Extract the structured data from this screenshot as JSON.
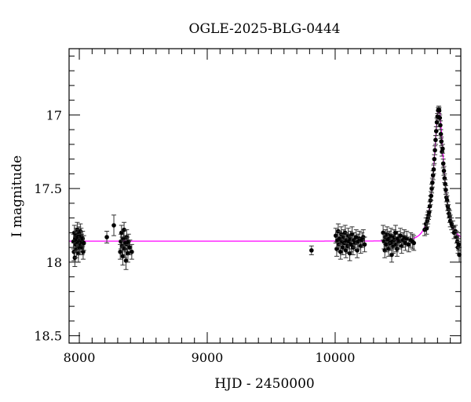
{
  "chart_data": {
    "type": "scatter",
    "title": "OGLE-2025-BLG-0444",
    "xlabel": "HJD - 2450000",
    "ylabel": "I magnitude",
    "xlim": [
      7920,
      10982
    ],
    "ylim": [
      18.55,
      16.55
    ],
    "y_inverted": true,
    "x_ticks": [
      8000,
      9000,
      10000
    ],
    "x_tick_labels": [
      "8000",
      "9000",
      "10000"
    ],
    "x_minor_step": 100,
    "y_ticks": [
      17,
      17.5,
      18,
      18.5
    ],
    "y_tick_labels": [
      "17",
      "17.5",
      "18",
      "18.5"
    ],
    "y_minor_step": 0.1,
    "grid": false,
    "colors": {
      "points": "#000000",
      "model": "#ff00ff"
    },
    "model": {
      "type": "point-lens",
      "t0": 10810,
      "tE": 67,
      "u0": 0.47,
      "baseline_mag": 17.857
    },
    "points": [
      [
        7955,
        17.86,
        0.05
      ],
      [
        7958,
        17.93,
        0.06
      ],
      [
        7962,
        17.8,
        0.05
      ],
      [
        7965,
        17.97,
        0.06
      ],
      [
        7968,
        17.84,
        0.05
      ],
      [
        7972,
        17.88,
        0.05
      ],
      [
        7975,
        17.82,
        0.05
      ],
      [
        7978,
        17.91,
        0.06
      ],
      [
        7981,
        17.85,
        0.05
      ],
      [
        7984,
        17.78,
        0.05
      ],
      [
        7987,
        17.87,
        0.05
      ],
      [
        7990,
        17.83,
        0.05
      ],
      [
        7993,
        17.94,
        0.06
      ],
      [
        7996,
        17.81,
        0.05
      ],
      [
        7999,
        17.86,
        0.05
      ],
      [
        8002,
        17.9,
        0.05
      ],
      [
        8005,
        17.84,
        0.05
      ],
      [
        8008,
        17.79,
        0.05
      ],
      [
        8011,
        17.88,
        0.05
      ],
      [
        8014,
        17.82,
        0.05
      ],
      [
        8018,
        17.86,
        0.05
      ],
      [
        8022,
        17.9,
        0.05
      ],
      [
        8026,
        17.84,
        0.05
      ],
      [
        8030,
        17.93,
        0.05
      ],
      [
        8035,
        17.87,
        0.05
      ],
      [
        8215,
        17.83,
        0.04
      ],
      [
        8270,
        17.75,
        0.07
      ],
      [
        8320,
        17.93,
        0.05
      ],
      [
        8325,
        17.86,
        0.05
      ],
      [
        8330,
        17.8,
        0.05
      ],
      [
        8335,
        17.89,
        0.06
      ],
      [
        8340,
        17.96,
        0.06
      ],
      [
        8345,
        17.84,
        0.05
      ],
      [
        8350,
        17.78,
        0.05
      ],
      [
        8355,
        17.91,
        0.06
      ],
      [
        8360,
        17.87,
        0.05
      ],
      [
        8365,
        17.99,
        0.06
      ],
      [
        8370,
        17.83,
        0.05
      ],
      [
        8375,
        17.88,
        0.05
      ],
      [
        8380,
        17.94,
        0.06
      ],
      [
        8385,
        17.86,
        0.05
      ],
      [
        8395,
        17.9,
        0.05
      ],
      [
        8410,
        17.93,
        0.05
      ],
      [
        9815,
        17.92,
        0.03
      ],
      [
        10005,
        17.82,
        0.05
      ],
      [
        10012,
        17.91,
        0.05
      ],
      [
        10018,
        17.85,
        0.05
      ],
      [
        10024,
        17.79,
        0.05
      ],
      [
        10030,
        17.88,
        0.05
      ],
      [
        10036,
        17.84,
        0.05
      ],
      [
        10042,
        17.93,
        0.05
      ],
      [
        10048,
        17.81,
        0.05
      ],
      [
        10054,
        17.86,
        0.05
      ],
      [
        10060,
        17.9,
        0.05
      ],
      [
        10066,
        17.83,
        0.05
      ],
      [
        10072,
        17.87,
        0.05
      ],
      [
        10078,
        17.8,
        0.05
      ],
      [
        10084,
        17.92,
        0.05
      ],
      [
        10090,
        17.85,
        0.05
      ],
      [
        10096,
        17.89,
        0.05
      ],
      [
        10102,
        17.82,
        0.05
      ],
      [
        10108,
        17.86,
        0.05
      ],
      [
        10114,
        17.94,
        0.05
      ],
      [
        10120,
        17.84,
        0.05
      ],
      [
        10126,
        17.88,
        0.05
      ],
      [
        10132,
        17.81,
        0.05
      ],
      [
        10140,
        17.9,
        0.05
      ],
      [
        10148,
        17.85,
        0.05
      ],
      [
        10156,
        17.87,
        0.05
      ],
      [
        10164,
        17.83,
        0.05
      ],
      [
        10172,
        17.92,
        0.05
      ],
      [
        10180,
        17.86,
        0.05
      ],
      [
        10190,
        17.84,
        0.05
      ],
      [
        10200,
        17.89,
        0.05
      ],
      [
        10210,
        17.85,
        0.05
      ],
      [
        10220,
        17.83,
        0.05
      ],
      [
        10230,
        17.88,
        0.05
      ],
      [
        10375,
        17.8,
        0.05
      ],
      [
        10382,
        17.86,
        0.05
      ],
      [
        10388,
        17.92,
        0.05
      ],
      [
        10394,
        17.83,
        0.05
      ],
      [
        10400,
        17.88,
        0.05
      ],
      [
        10406,
        17.81,
        0.05
      ],
      [
        10412,
        17.85,
        0.05
      ],
      [
        10418,
        17.91,
        0.05
      ],
      [
        10424,
        17.84,
        0.05
      ],
      [
        10430,
        17.87,
        0.05
      ],
      [
        10436,
        17.82,
        0.05
      ],
      [
        10442,
        17.95,
        0.05
      ],
      [
        10448,
        17.86,
        0.05
      ],
      [
        10454,
        17.89,
        0.05
      ],
      [
        10460,
        17.83,
        0.05
      ],
      [
        10466,
        17.85,
        0.05
      ],
      [
        10472,
        17.8,
        0.05
      ],
      [
        10478,
        17.88,
        0.05
      ],
      [
        10484,
        17.91,
        0.05
      ],
      [
        10490,
        17.84,
        0.05
      ],
      [
        10500,
        17.86,
        0.05
      ],
      [
        10510,
        17.82,
        0.05
      ],
      [
        10520,
        17.89,
        0.05
      ],
      [
        10530,
        17.85,
        0.05
      ],
      [
        10540,
        17.83,
        0.05
      ],
      [
        10550,
        17.87,
        0.05
      ],
      [
        10560,
        17.84,
        0.05
      ],
      [
        10575,
        17.88,
        0.05
      ],
      [
        10590,
        17.85,
        0.05
      ],
      [
        10605,
        17.86,
        0.05
      ],
      [
        10615,
        17.87,
        0.05
      ],
      [
        10700,
        17.78,
        0.04
      ],
      [
        10710,
        17.74,
        0.04
      ],
      [
        10715,
        17.77,
        0.04
      ],
      [
        10720,
        17.72,
        0.04
      ],
      [
        10725,
        17.7,
        0.04
      ],
      [
        10730,
        17.68,
        0.03
      ],
      [
        10735,
        17.66,
        0.03
      ],
      [
        10740,
        17.62,
        0.03
      ],
      [
        10745,
        17.58,
        0.03
      ],
      [
        10750,
        17.55,
        0.03
      ],
      [
        10755,
        17.5,
        0.03
      ],
      [
        10760,
        17.46,
        0.03
      ],
      [
        10765,
        17.41,
        0.03
      ],
      [
        10770,
        17.37,
        0.03
      ],
      [
        10775,
        17.3,
        0.03
      ],
      [
        10780,
        17.24,
        0.03
      ],
      [
        10785,
        17.17,
        0.03
      ],
      [
        10790,
        17.11,
        0.03
      ],
      [
        10795,
        17.05,
        0.03
      ],
      [
        10800,
        17.01,
        0.02
      ],
      [
        10805,
        16.97,
        0.02
      ],
      [
        10810,
        16.96,
        0.02
      ],
      [
        10813,
        16.97,
        0.02
      ],
      [
        10818,
        17.02,
        0.02
      ],
      [
        10822,
        17.07,
        0.03
      ],
      [
        10826,
        17.13,
        0.03
      ],
      [
        10830,
        17.18,
        0.03
      ],
      [
        10835,
        17.25,
        0.03
      ],
      [
        10840,
        17.23,
        0.03
      ],
      [
        10845,
        17.33,
        0.03
      ],
      [
        10850,
        17.38,
        0.03
      ],
      [
        10855,
        17.43,
        0.03
      ],
      [
        10860,
        17.47,
        0.03
      ],
      [
        10865,
        17.51,
        0.03
      ],
      [
        10870,
        17.56,
        0.03
      ],
      [
        10875,
        17.58,
        0.03
      ],
      [
        10880,
        17.62,
        0.03
      ],
      [
        10885,
        17.64,
        0.03
      ],
      [
        10890,
        17.67,
        0.03
      ],
      [
        10895,
        17.69,
        0.04
      ],
      [
        10900,
        17.72,
        0.04
      ],
      [
        10910,
        17.74,
        0.04
      ],
      [
        10920,
        17.76,
        0.04
      ],
      [
        10930,
        17.8,
        0.04
      ],
      [
        10940,
        17.79,
        0.04
      ],
      [
        10950,
        17.83,
        0.04
      ],
      [
        10955,
        17.86,
        0.04
      ],
      [
        10960,
        17.9,
        0.04
      ],
      [
        10965,
        17.88,
        0.04
      ],
      [
        10970,
        17.95,
        0.05
      ]
    ]
  }
}
